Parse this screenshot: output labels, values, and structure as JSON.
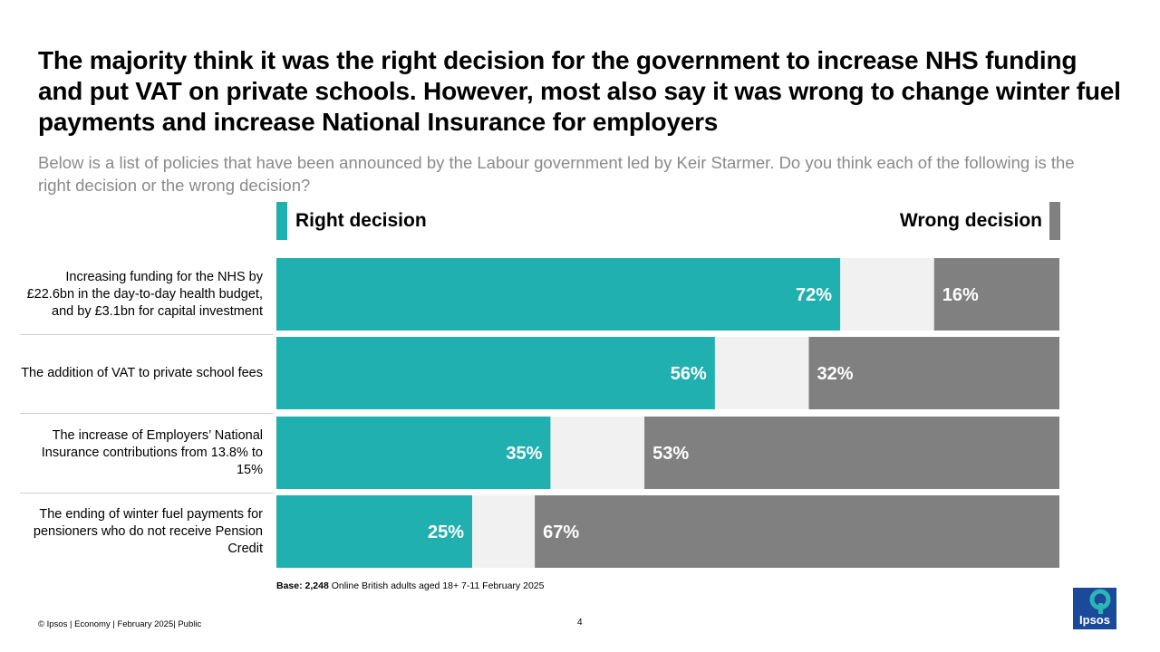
{
  "title": "The majority think it was the right decision for the government to increase NHS funding and put VAT on private schools. However, most also say it was wrong to change winter fuel payments and increase National Insurance for employers",
  "subtitle": "Below is a list of policies that have been announced by the Labour government led by Keir Starmer. Do you think each of the following is the right decision or the wrong decision?",
  "legend": {
    "right": "Right decision",
    "wrong": "Wrong decision"
  },
  "colors": {
    "right": "#20b0b0",
    "wrong": "#808080",
    "neither": "#f1f1f1"
  },
  "chart_data": {
    "type": "bar",
    "orientation": "horizontal-stacked",
    "categories": [
      "Increasing funding for the NHS by £22.6bn in the day-to-day health budget, and by £3.1bn for capital investment",
      "The addition of VAT to private school fees",
      "The increase of Employers’ National Insurance contributions from 13.8% to 15%",
      "The ending of winter fuel payments for pensioners who do not receive Pension Credit"
    ],
    "series": [
      {
        "name": "Right decision",
        "values": [
          72,
          56,
          35,
          25
        ]
      },
      {
        "name": "Wrong decision",
        "values": [
          16,
          32,
          53,
          67
        ]
      }
    ],
    "xlim": [
      0,
      100
    ],
    "legend_position": "top"
  },
  "base": {
    "bold": "Base: 2,248",
    "text": " Online British adults aged 18+ 7-11 February 2025"
  },
  "footer": "© Ipsos | Economy | February 2025| Public",
  "page_number": "4",
  "logo": {
    "text": "Ipsos"
  }
}
